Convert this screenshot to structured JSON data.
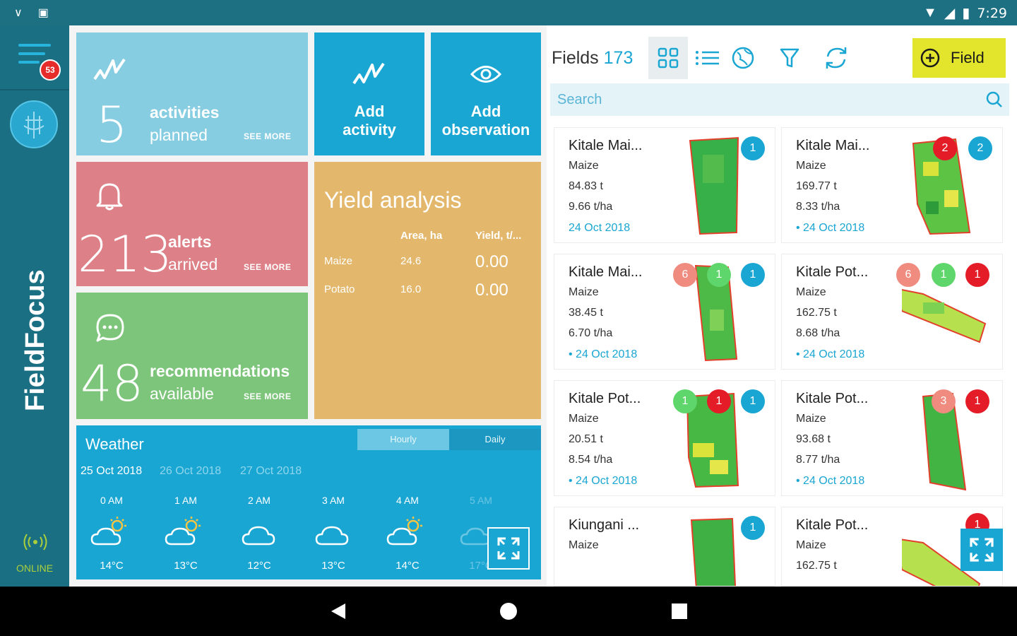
{
  "status_bar": {
    "time": "7:29"
  },
  "sidebar": {
    "notification_count": "53",
    "brand": "FieldFocus",
    "status": "ONLINE"
  },
  "tiles": {
    "activities": {
      "count": "5",
      "line1": "activities",
      "line2": "planned",
      "see_more": "SEE MORE"
    },
    "add_activity": {
      "line1": "Add",
      "line2": "activity"
    },
    "add_observation": {
      "line1": "Add",
      "line2": "observation"
    },
    "alerts": {
      "count": "213",
      "line1": "alerts",
      "line2": "arrived",
      "see_more": "SEE MORE"
    },
    "recommendations": {
      "count": "48",
      "line1": "recommendations",
      "line2": "available",
      "see_more": "SEE MORE"
    }
  },
  "yield": {
    "title": "Yield analysis",
    "headers": [
      "Area, ha",
      "Yield, t/..."
    ],
    "rows": [
      {
        "crop": "Maize",
        "area": "24.6",
        "yield": "0.00"
      },
      {
        "crop": "Potato",
        "area": "16.0",
        "yield": "0.00"
      }
    ]
  },
  "weather": {
    "title": "Weather",
    "toggle": [
      "Hourly",
      "Daily"
    ],
    "dates": [
      "25 Oct 2018",
      "26 Oct 2018",
      "27 Oct 2018"
    ],
    "hours": [
      {
        "time": "0 AM",
        "icon": "partly-cloudy-icon",
        "temp": "14°C"
      },
      {
        "time": "1 AM",
        "icon": "partly-cloudy-icon",
        "temp": "13°C"
      },
      {
        "time": "2 AM",
        "icon": "cloud-icon",
        "temp": "12°C"
      },
      {
        "time": "3 AM",
        "icon": "cloud-icon",
        "temp": "13°C"
      },
      {
        "time": "4 AM",
        "icon": "partly-cloudy-icon",
        "temp": "14°C"
      },
      {
        "time": "5 AM",
        "icon": "partly-cloudy-icon",
        "temp": "17°C"
      }
    ]
  },
  "fields": {
    "title": "Fields",
    "count": "173",
    "add_label": "Field",
    "search_placeholder": "Search",
    "cards": [
      {
        "name": "Kitale Mai...",
        "crop": "Maize",
        "amount": "84.83 t",
        "yield": "9.66 t/ha",
        "date": "24 Oct 2018",
        "badges": [
          {
            "n": "1",
            "c": "blue"
          }
        ]
      },
      {
        "name": "Kitale Mai...",
        "crop": "Maize",
        "amount": "169.77 t",
        "yield": "8.33 t/ha",
        "date": "• 24 Oct 2018",
        "badges": [
          {
            "n": "2",
            "c": "red"
          },
          {
            "n": "2",
            "c": "blue"
          }
        ]
      },
      {
        "name": "Kitale Mai...",
        "crop": "Maize",
        "amount": "38.45 t",
        "yield": "6.70 t/ha",
        "date": "• 24 Oct 2018",
        "badges": [
          {
            "n": "6",
            "c": "pink"
          },
          {
            "n": "1",
            "c": "green"
          },
          {
            "n": "1",
            "c": "blue"
          }
        ]
      },
      {
        "name": "Kitale Pot...",
        "crop": "Maize",
        "amount": "162.75 t",
        "yield": "8.68 t/ha",
        "date": "• 24 Oct 2018",
        "badges": [
          {
            "n": "6",
            "c": "pink"
          },
          {
            "n": "1",
            "c": "green"
          },
          {
            "n": "1",
            "c": "red"
          }
        ]
      },
      {
        "name": "Kitale Pot...",
        "crop": "Maize",
        "amount": "20.51 t",
        "yield": "8.54 t/ha",
        "date": "• 24 Oct 2018",
        "badges": [
          {
            "n": "1",
            "c": "green"
          },
          {
            "n": "1",
            "c": "red"
          },
          {
            "n": "1",
            "c": "blue"
          }
        ]
      },
      {
        "name": "Kitale Pot...",
        "crop": "Maize",
        "amount": "93.68 t",
        "yield": "8.77 t/ha",
        "date": "• 24 Oct 2018",
        "badges": [
          {
            "n": "3",
            "c": "pink"
          },
          {
            "n": "1",
            "c": "red"
          }
        ]
      },
      {
        "name": "Kiungani ...",
        "crop": "Maize",
        "amount": "",
        "yield": "",
        "date": "",
        "badges": [
          {
            "n": "1",
            "c": "blue"
          }
        ]
      },
      {
        "name": "Kitale Pot...",
        "crop": "Maize",
        "amount": "162.75 t",
        "yield": "",
        "date": "",
        "badges": [
          {
            "n": "1",
            "c": "red"
          }
        ]
      }
    ]
  }
}
